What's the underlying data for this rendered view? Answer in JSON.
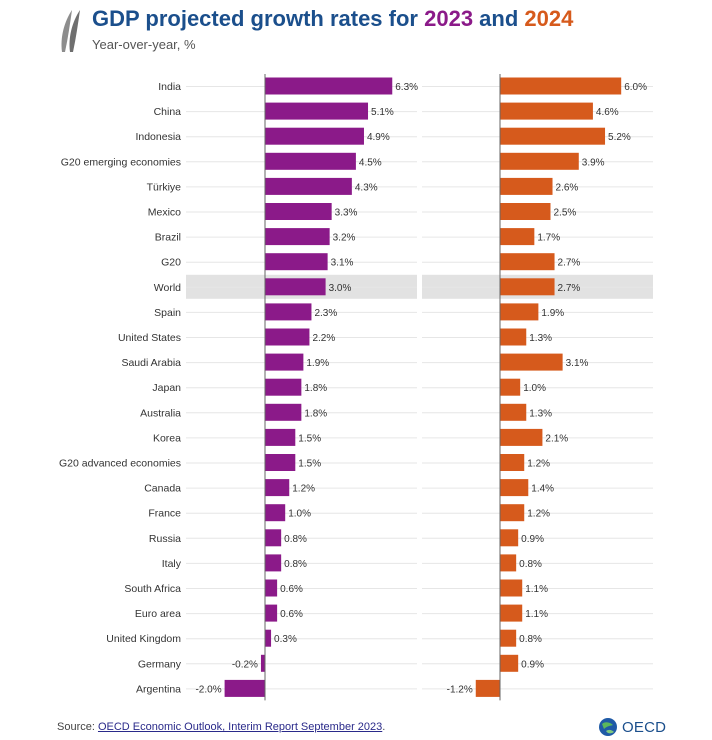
{
  "header": {
    "title_part1": "GDP projected growth rates for ",
    "title_year1": "2023",
    "title_and": " and ",
    "title_year2": "2024",
    "subtitle": "Year-over-year, %"
  },
  "footer": {
    "source_prefix": "Source: ",
    "source_link": "OECD Economic Outlook, Interim Report September 2023",
    "source_suffix": ".",
    "logo_text": "OECD"
  },
  "colors": {
    "series_2023": "#8b1a89",
    "series_2024": "#d65a1c",
    "highlight_row": "#e2e2e2",
    "title_blue": "#1b4f8c"
  },
  "icons": {
    "brand_mark": "oecd-leaves-icon",
    "globe": "globe-icon"
  },
  "chart_data": {
    "type": "bar",
    "orientation": "horizontal",
    "grid": true,
    "highlight_category": "World",
    "categories": [
      "India",
      "China",
      "Indonesia",
      "G20 emerging economies",
      "Türkiye",
      "Mexico",
      "Brazil",
      "G20",
      "World",
      "Spain",
      "United States",
      "Saudi Arabia",
      "Japan",
      "Australia",
      "Korea",
      "G20 advanced economies",
      "Canada",
      "France",
      "Russia",
      "Italy",
      "South Africa",
      "Euro area",
      "United Kingdom",
      "Germany",
      "Argentina"
    ],
    "series": [
      {
        "name": "2023",
        "values": [
          6.3,
          5.1,
          4.9,
          4.5,
          4.3,
          3.3,
          3.2,
          3.1,
          3.0,
          2.3,
          2.2,
          1.9,
          1.8,
          1.8,
          1.5,
          1.5,
          1.2,
          1.0,
          0.8,
          0.8,
          0.6,
          0.6,
          0.3,
          -0.2,
          -2.0
        ],
        "labels": [
          "6.3%",
          "5.1%",
          "4.9%",
          "4.5%",
          "4.3%",
          "3.3%",
          "3.2%",
          "3.1%",
          "3.0%",
          "2.3%",
          "2.2%",
          "1.9%",
          "1.8%",
          "1.8%",
          "1.5%",
          "1.5%",
          "1.2%",
          "1.0%",
          "0.8%",
          "0.8%",
          "0.6%",
          "0.6%",
          "0.3%",
          "-0.2%",
          "-2.0%"
        ]
      },
      {
        "name": "2024",
        "values": [
          6.0,
          4.6,
          5.2,
          3.9,
          2.6,
          2.5,
          1.7,
          2.7,
          2.7,
          1.9,
          1.3,
          3.1,
          1.0,
          1.3,
          2.1,
          1.2,
          1.4,
          1.2,
          0.9,
          0.8,
          1.1,
          1.1,
          0.8,
          0.9,
          -1.2
        ],
        "labels": [
          "6.0%",
          "4.6%",
          "5.2%",
          "3.9%",
          "2.6%",
          "2.5%",
          "1.7%",
          "2.7%",
          "2.7%",
          "1.9%",
          "1.3%",
          "3.1%",
          "1.0%",
          "1.3%",
          "2.1%",
          "1.2%",
          "1.4%",
          "1.2%",
          "0.9%",
          "0.8%",
          "1.1%",
          "1.1%",
          "0.8%",
          "0.9%",
          "-1.2%"
        ]
      }
    ]
  }
}
